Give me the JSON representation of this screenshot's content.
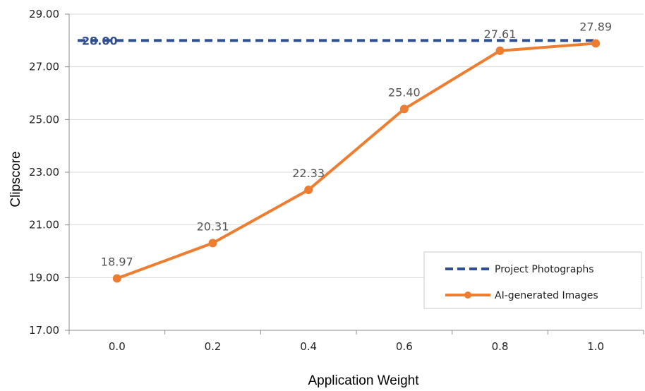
{
  "chart_data": {
    "type": "line",
    "title": "",
    "xlabel": "Application Weight",
    "ylabel": "Clipscore",
    "categories": [
      "0.0",
      "0.2",
      "0.4",
      "0.6",
      "0.8",
      "1.0"
    ],
    "ylim": [
      17,
      29
    ],
    "yticks": [
      "17.00",
      "19.00",
      "21.00",
      "23.00",
      "25.00",
      "27.00",
      "29.00"
    ],
    "grid": true,
    "legend_position": "bottom-right",
    "series": [
      {
        "name": "Project Photographs",
        "values": [
          28.0,
          28.0,
          28.0,
          28.0,
          28.0,
          28.0
        ],
        "style": "dashed",
        "color": "#2f4f8f",
        "label": "28.00"
      },
      {
        "name": "AI-generated Images",
        "values": [
          18.97,
          20.31,
          22.33,
          25.4,
          27.61,
          27.89
        ],
        "labels": [
          "18.97",
          "20.31",
          "22.33",
          "25.40",
          "27.61",
          "27.89"
        ],
        "style": "solid",
        "marker": "circle",
        "color": "#ed7d31"
      }
    ]
  }
}
